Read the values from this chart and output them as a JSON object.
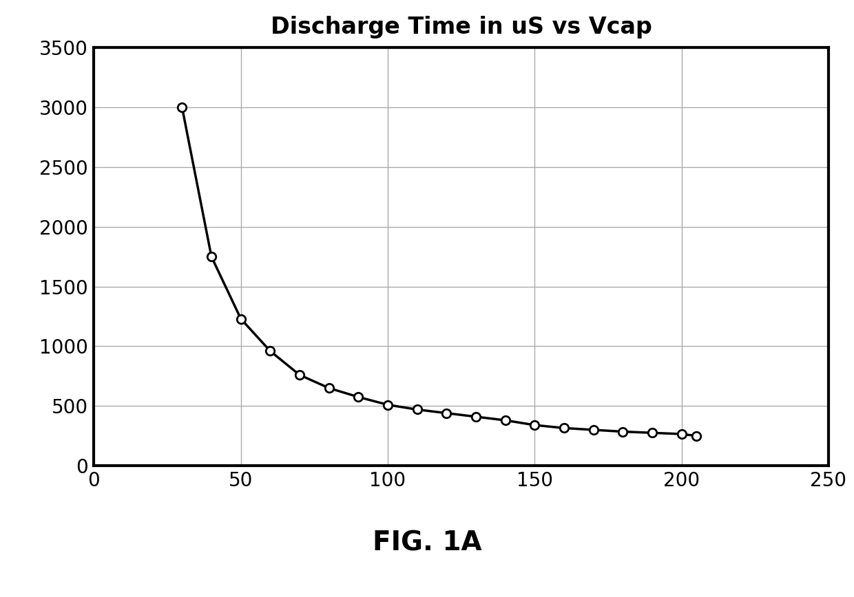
{
  "title": "Discharge Time in uS vs Vcap",
  "fig_label": "FIG. 1A",
  "x": [
    30,
    40,
    50,
    60,
    70,
    80,
    90,
    100,
    110,
    120,
    130,
    140,
    150,
    160,
    170,
    180,
    190,
    200,
    205
  ],
  "y": [
    3000,
    1750,
    1230,
    960,
    760,
    650,
    575,
    510,
    470,
    440,
    410,
    380,
    340,
    315,
    300,
    285,
    275,
    265,
    250
  ],
  "xlim": [
    0,
    250
  ],
  "ylim": [
    0,
    3500
  ],
  "xticks": [
    0,
    50,
    100,
    150,
    200,
    250
  ],
  "yticks": [
    0,
    500,
    1000,
    1500,
    2000,
    2500,
    3000,
    3500
  ],
  "line_color": "#000000",
  "marker_color": "#ffffff",
  "marker_edge_color": "#000000",
  "background_color": "#ffffff",
  "grid_color": "#aaaaaa",
  "title_fontsize": 24,
  "tick_fontsize": 20,
  "fig_label_fontsize": 28,
  "spine_linewidth": 3.0,
  "line_width": 2.5,
  "marker_size": 9,
  "marker_edge_width": 2.0
}
